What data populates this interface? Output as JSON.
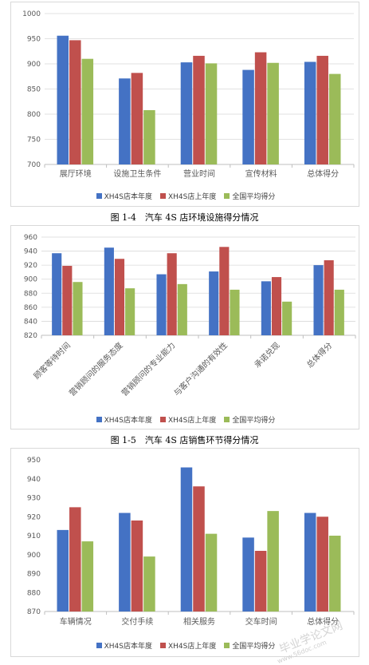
{
  "colors": {
    "s1": "#4472c4",
    "s2": "#c0504d",
    "s3": "#9bbb59",
    "axis": "#595959",
    "grid": "#d9d9d9"
  },
  "legend": [
    "XH4S店本年度",
    "XH4S店上年度",
    "全国平均得分"
  ],
  "captions": {
    "c1": "图 1-4　汽车 4S 店环境设施得分情况",
    "c2": "图 1-5　汽车 4S 店销售环节得分情况"
  },
  "watermark": {
    "main": "毕业学论文网",
    "sub": "www.56doc.com"
  },
  "chart_data": [
    {
      "type": "bar",
      "categories": [
        "展厅环境",
        "设施卫生条件",
        "营业时间",
        "宣传材料",
        "总体得分"
      ],
      "series": [
        {
          "name": "XH4S店本年度",
          "values": [
            956,
            871,
            903,
            888,
            904
          ]
        },
        {
          "name": "XH4S店上年度",
          "values": [
            947,
            882,
            916,
            923,
            916
          ]
        },
        {
          "name": "全国平均得分",
          "values": [
            910,
            808,
            901,
            902,
            880
          ]
        }
      ],
      "ylim": [
        700,
        1000
      ],
      "yticks": [
        "700",
        "750",
        "800",
        "850",
        "900",
        "950",
        "1000"
      ],
      "grid": true,
      "legend": "bottom"
    },
    {
      "type": "bar",
      "categories": [
        "顾客等待时间",
        "营销顾问的服务态度",
        "营销顾问的专业能力",
        "与客户沟通的有效性",
        "承诺兑现",
        "总体得分"
      ],
      "series": [
        {
          "name": "XH4S店本年度",
          "values": [
            937,
            945,
            907,
            911,
            897,
            920
          ]
        },
        {
          "name": "XH4S店上年度",
          "values": [
            919,
            929,
            937,
            946,
            903,
            927
          ]
        },
        {
          "name": "全国平均得分",
          "values": [
            896,
            887,
            893,
            885,
            868,
            885
          ]
        }
      ],
      "ylim": [
        820,
        960
      ],
      "yticks": [
        "820",
        "840",
        "860",
        "880",
        "900",
        "920",
        "940",
        "960"
      ],
      "grid": true,
      "legend": "bottom"
    },
    {
      "type": "bar",
      "categories": [
        "车辆情况",
        "交付手续",
        "相关服务",
        "交车时间",
        "总体得分"
      ],
      "series": [
        {
          "name": "XH4S店本年度",
          "values": [
            913,
            922,
            946,
            909,
            922
          ]
        },
        {
          "name": "XH4S店上年度",
          "values": [
            925,
            918,
            936,
            902,
            920
          ]
        },
        {
          "name": "全国平均得分",
          "values": [
            907,
            899,
            911,
            923,
            910
          ]
        }
      ],
      "ylim": [
        870,
        950
      ],
      "yticks": [
        "870",
        "880",
        "890",
        "900",
        "910",
        "920",
        "930",
        "940",
        "950"
      ],
      "grid": false,
      "legend": "bottom"
    }
  ]
}
